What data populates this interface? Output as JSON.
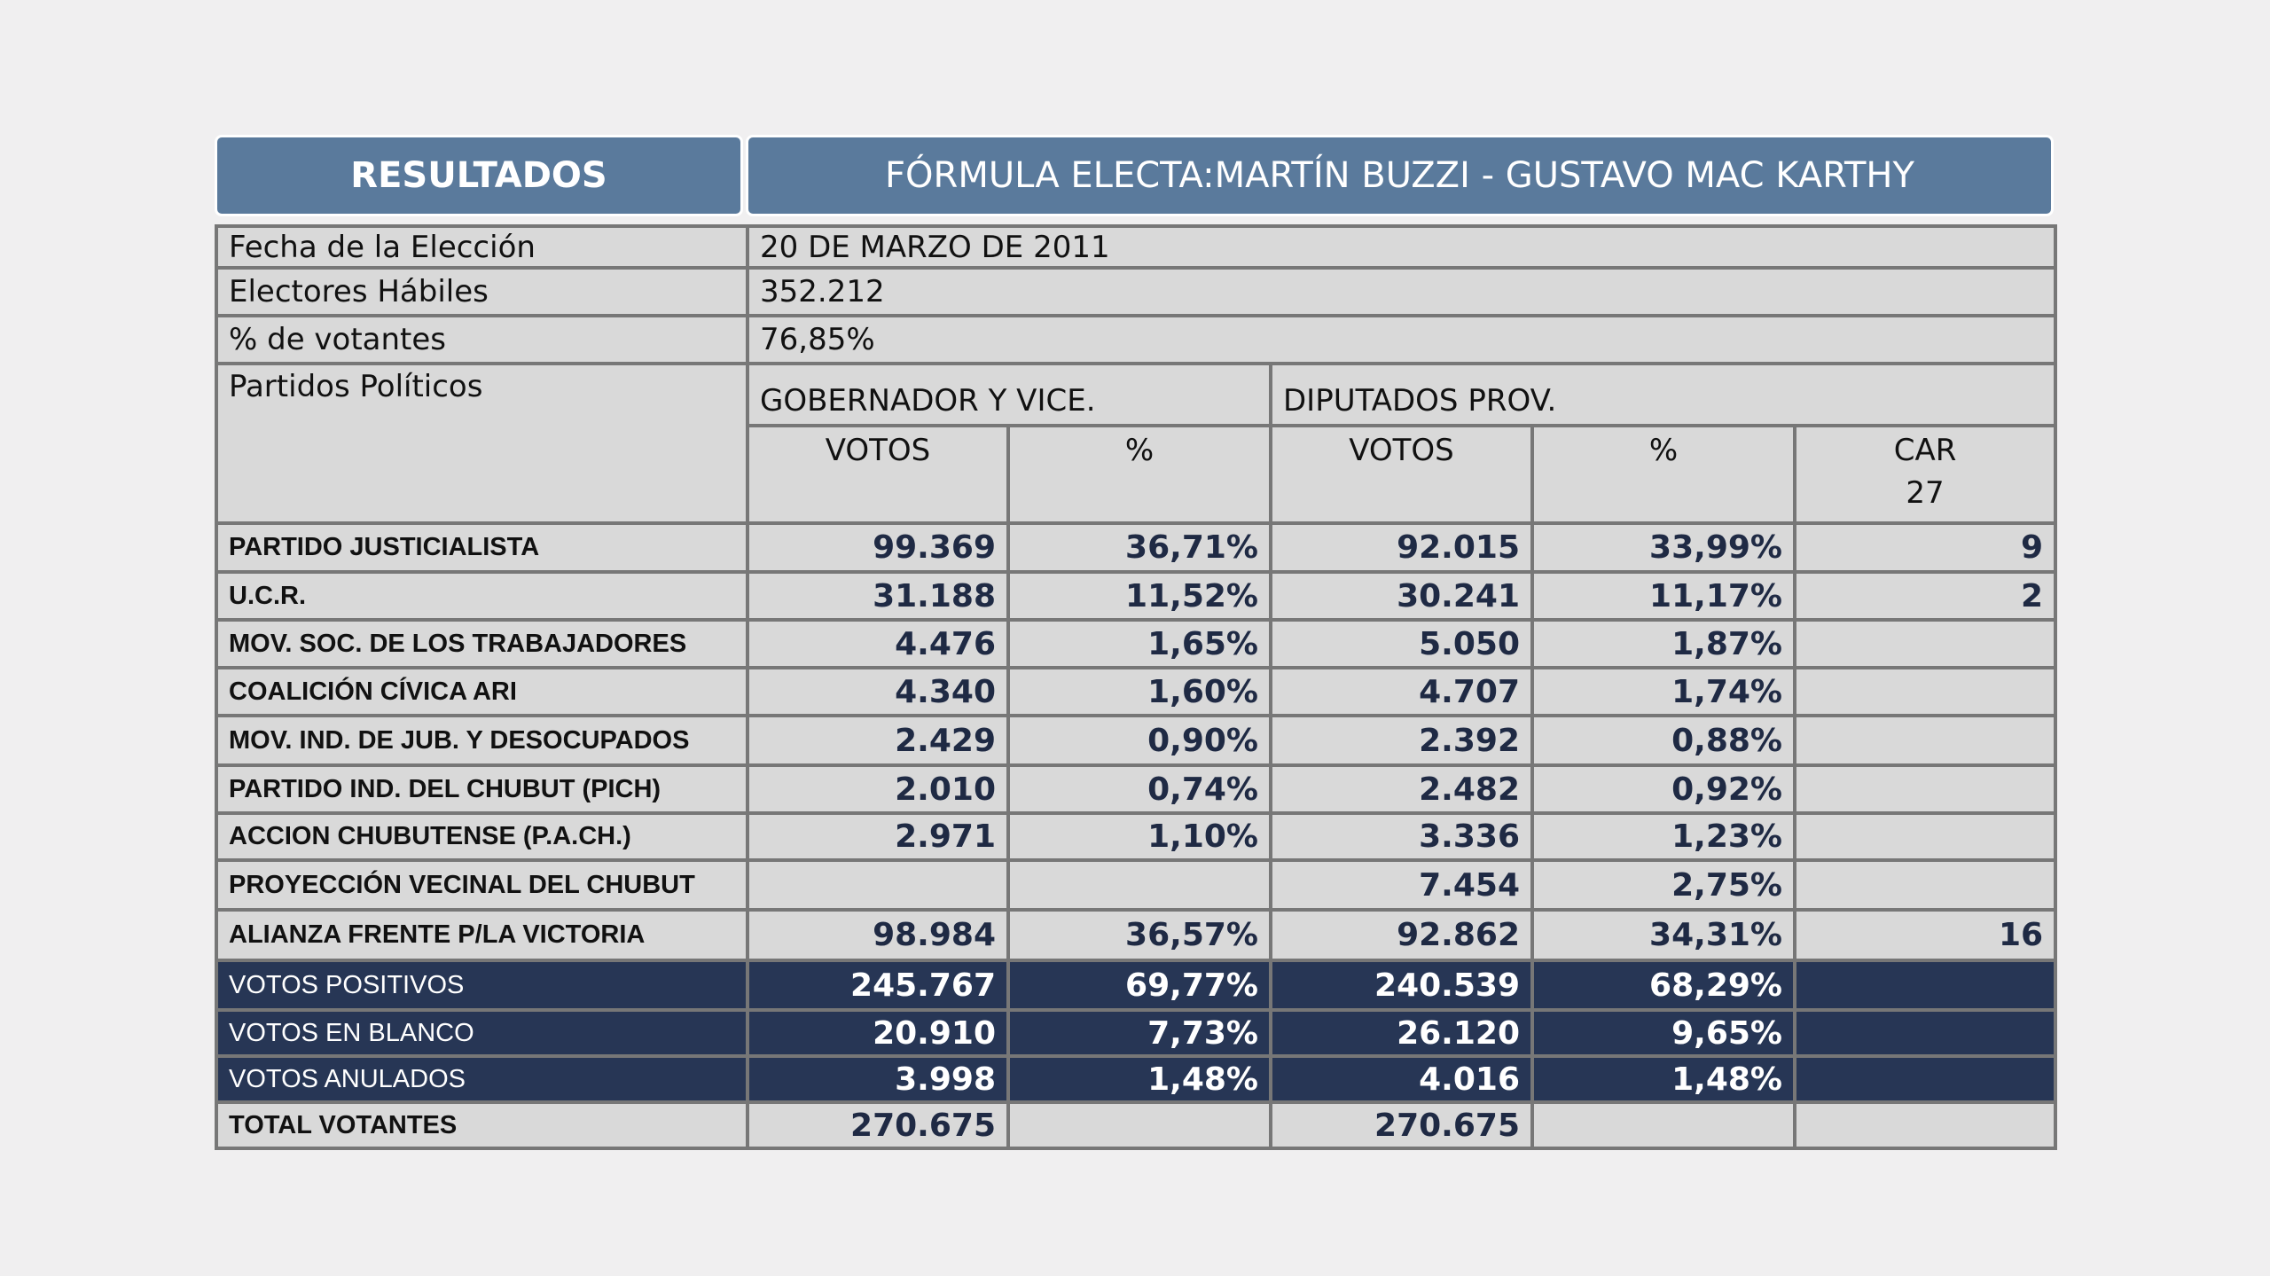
{
  "header": {
    "left": "RESULTADOS",
    "right": "FÓRMULA ELECTA:MARTÍN BUZZI - GUSTAVO MAC KARTHY"
  },
  "info": [
    {
      "label": "Fecha de la Elección",
      "value": "20 DE MARZO DE 2011"
    },
    {
      "label": "Electores Hábiles",
      "value": "352.212"
    },
    {
      "label": "% de votantes",
      "value": "76,85%"
    }
  ],
  "columns": {
    "parties_label": "Partidos Políticos",
    "group1": "GOBERNADOR Y VICE.",
    "group2": "DIPUTADOS PROV.",
    "votos": "VOTOS",
    "pct": "%",
    "car": "CAR",
    "car_total": "27"
  },
  "rows": [
    {
      "name": "PARTIDO JUSTICIALISTA",
      "g_votos": "99.369",
      "g_pct": "36,71%",
      "d_votos": "92.015",
      "d_pct": "33,99%",
      "car": "9"
    },
    {
      "name": "U.C.R.",
      "g_votos": "31.188",
      "g_pct": "11,52%",
      "d_votos": "30.241",
      "d_pct": "11,17%",
      "car": "2"
    },
    {
      "name": "MOV. SOC. DE LOS TRABAJADORES",
      "g_votos": "4.476",
      "g_pct": "1,65%",
      "d_votos": "5.050",
      "d_pct": "1,87%",
      "car": ""
    },
    {
      "name": "COALICIÓN CÍVICA ARI",
      "g_votos": "4.340",
      "g_pct": "1,60%",
      "d_votos": "4.707",
      "d_pct": "1,74%",
      "car": ""
    },
    {
      "name": "MOV. IND. DE JUB. Y DESOCUPADOS",
      "g_votos": "2.429",
      "g_pct": "0,90%",
      "d_votos": "2.392",
      "d_pct": "0,88%",
      "car": ""
    },
    {
      "name": "PARTIDO IND. DEL CHUBUT (PICH)",
      "g_votos": "2.010",
      "g_pct": "0,74%",
      "d_votos": "2.482",
      "d_pct": "0,92%",
      "car": ""
    },
    {
      "name": "ACCION CHUBUTENSE (P.A.CH.)",
      "g_votos": "2.971",
      "g_pct": "1,10%",
      "d_votos": "3.336",
      "d_pct": "1,23%",
      "car": ""
    },
    {
      "name": "PROYECCIÓN VECINAL DEL CHUBUT",
      "g_votos": "",
      "g_pct": "",
      "d_votos": "7.454",
      "d_pct": "2,75%",
      "car": ""
    },
    {
      "name": "ALIANZA FRENTE P/LA VICTORIA",
      "g_votos": "98.984",
      "g_pct": "36,57%",
      "d_votos": "92.862",
      "d_pct": "34,31%",
      "car": "16"
    }
  ],
  "summary": [
    {
      "name": "VOTOS POSITIVOS",
      "g_votos": "245.767",
      "g_pct": "69,77%",
      "d_votos": "240.539",
      "d_pct": "68,29%"
    },
    {
      "name": "VOTOS EN BLANCO",
      "g_votos": "20.910",
      "g_pct": "7,73%",
      "d_votos": "26.120",
      "d_pct": "9,65%"
    },
    {
      "name": "VOTOS ANULADOS",
      "g_votos": "3.998",
      "g_pct": "1,48%",
      "d_votos": "4.016",
      "d_pct": "1,48%"
    }
  ],
  "total": {
    "name": "TOTAL VOTANTES",
    "g_votos": "270.675",
    "d_votos": "270.675"
  },
  "colors": {
    "header": "#5a7a9c",
    "cell": "#d9d9d9",
    "dark_row": "#273655",
    "border": "#777777",
    "number": "#1f2a44"
  }
}
